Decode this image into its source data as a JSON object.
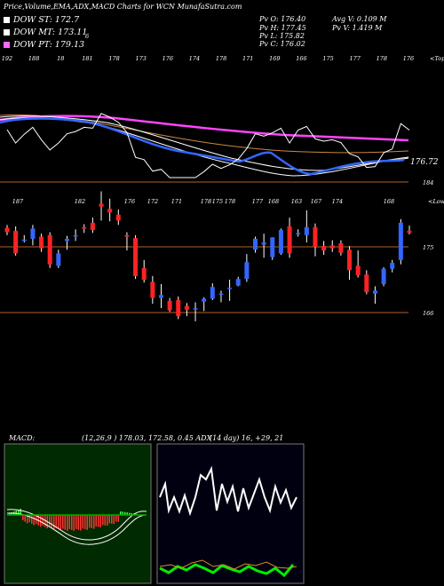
{
  "header": {
    "title": "Price,Volume,EMA,ADX,MACD Charts for WCN",
    "site": "MunafaSutra.com",
    "pv_open": "Pv   O: 176.40",
    "pv_high": "Pv   H: 177.45",
    "pv_low": "Pv   L: 175.82",
    "pv_close": "Pv   C: 176.02",
    "avg_volume": "Avg V: 0.109 M",
    "pv_volume": "Pv   V: 1.419 M",
    "stray_mark": "6"
  },
  "legend": [
    {
      "label": "DOW ST: 172.7",
      "color": "#ffffff"
    },
    {
      "label": "DOW MT: 173.11",
      "color": "#ffffff"
    },
    {
      "label": "DOW PT: 179.13",
      "color": "#ff66ff"
    }
  ],
  "colors": {
    "up": "#3366ff",
    "down": "#ff2222",
    "band": "#b0622a",
    "ema_fast": "#3366ff",
    "ema_long": "#ff44ff",
    "ema_mid": "#cc8844",
    "adx": "#00dd00",
    "adx_di": "#dd8833",
    "macd_hist": "#ff3333"
  },
  "top_panel": {
    "top_label": "<Tops",
    "top_labels": [
      "192",
      "188",
      "18",
      "181",
      "178",
      "173",
      "176",
      "174",
      "178",
      "171",
      "169",
      "166",
      "175",
      "177",
      "178",
      "176"
    ],
    "price_tag": "176.72",
    "level_label": "184"
  },
  "candle_panel": {
    "lows_label": "<Lows",
    "top_labels": [
      "187",
      "182",
      "176",
      "172",
      "171",
      "178",
      "175",
      "178",
      "177",
      "168",
      "163",
      "167",
      "174",
      "168"
    ],
    "level_high": "175",
    "level_low": "166"
  },
  "chart_data": {
    "type": "candlestick",
    "candles": [
      {
        "o": 177.6,
        "h": 178.0,
        "l": 176.6,
        "c": 177.0
      },
      {
        "o": 177.2,
        "h": 177.8,
        "l": 173.8,
        "c": 174.1
      },
      {
        "o": 176.0,
        "h": 176.6,
        "l": 175.6,
        "c": 176.0
      },
      {
        "o": 176.1,
        "h": 178.0,
        "l": 175.2,
        "c": 177.5
      },
      {
        "o": 176.4,
        "h": 176.8,
        "l": 174.3,
        "c": 174.8
      },
      {
        "o": 176.6,
        "h": 177.0,
        "l": 172.1,
        "c": 172.6
      },
      {
        "o": 172.4,
        "h": 174.6,
        "l": 172.1,
        "c": 174.1
      },
      {
        "o": 175.8,
        "h": 176.5,
        "l": 174.6,
        "c": 176.1
      },
      {
        "o": 176.6,
        "h": 177.4,
        "l": 175.8,
        "c": 176.6
      },
      {
        "o": 177.7,
        "h": 178.1,
        "l": 176.9,
        "c": 177.5
      },
      {
        "o": 178.3,
        "h": 179.0,
        "l": 176.9,
        "c": 177.3
      },
      {
        "o": 180.9,
        "h": 182.6,
        "l": 178.6,
        "c": 180.5
      },
      {
        "o": 180.2,
        "h": 181.6,
        "l": 178.5,
        "c": 179.7
      },
      {
        "o": 179.4,
        "h": 180.1,
        "l": 178.0,
        "c": 178.6
      },
      {
        "o": 176.6,
        "h": 177.0,
        "l": 174.5,
        "c": 176.4
      },
      {
        "o": 176.2,
        "h": 176.6,
        "l": 170.6,
        "c": 171.0
      },
      {
        "o": 172.1,
        "h": 173.2,
        "l": 170.1,
        "c": 170.5
      },
      {
        "o": 170.2,
        "h": 171.0,
        "l": 167.2,
        "c": 168.0
      },
      {
        "o": 168.0,
        "h": 169.9,
        "l": 166.6,
        "c": 168.4
      },
      {
        "o": 167.6,
        "h": 168.0,
        "l": 166.1,
        "c": 166.3
      },
      {
        "o": 167.7,
        "h": 168.2,
        "l": 165.1,
        "c": 165.5
      },
      {
        "o": 166.9,
        "h": 167.3,
        "l": 165.5,
        "c": 166.4
      },
      {
        "o": 166.6,
        "h": 167.4,
        "l": 164.8,
        "c": 166.6
      },
      {
        "o": 167.5,
        "h": 168.1,
        "l": 166.2,
        "c": 167.9
      },
      {
        "o": 167.9,
        "h": 170.0,
        "l": 167.7,
        "c": 169.5
      },
      {
        "o": 168.5,
        "h": 169.0,
        "l": 167.4,
        "c": 168.6
      },
      {
        "o": 169.4,
        "h": 170.5,
        "l": 167.6,
        "c": 169.4
      },
      {
        "o": 169.7,
        "h": 170.9,
        "l": 169.6,
        "c": 170.6
      },
      {
        "o": 170.6,
        "h": 174.0,
        "l": 170.2,
        "c": 172.9
      },
      {
        "o": 174.6,
        "h": 176.4,
        "l": 174.2,
        "c": 176.1
      },
      {
        "o": 175.3,
        "h": 176.8,
        "l": 173.5,
        "c": 175.6
      },
      {
        "o": 173.6,
        "h": 176.3,
        "l": 173.2,
        "c": 176.3
      },
      {
        "o": 174.1,
        "h": 177.5,
        "l": 173.9,
        "c": 177.3
      },
      {
        "o": 177.8,
        "h": 179.0,
        "l": 173.5,
        "c": 174.1
      },
      {
        "o": 176.8,
        "h": 177.4,
        "l": 176.4,
        "c": 176.9
      },
      {
        "o": 176.6,
        "h": 180.0,
        "l": 175.6,
        "c": 177.7
      },
      {
        "o": 177.7,
        "h": 178.2,
        "l": 173.7,
        "c": 175.0
      },
      {
        "o": 175.1,
        "h": 175.8,
        "l": 173.9,
        "c": 174.5
      },
      {
        "o": 175.2,
        "h": 175.9,
        "l": 174.3,
        "c": 174.8
      },
      {
        "o": 175.5,
        "h": 175.9,
        "l": 173.8,
        "c": 174.2
      },
      {
        "o": 174.6,
        "h": 175.1,
        "l": 170.5,
        "c": 171.8
      },
      {
        "o": 172.4,
        "h": 174.5,
        "l": 170.8,
        "c": 171.1
      },
      {
        "o": 171.2,
        "h": 171.8,
        "l": 168.5,
        "c": 168.8
      },
      {
        "o": 168.6,
        "h": 169.6,
        "l": 167.2,
        "c": 169.0
      },
      {
        "o": 169.9,
        "h": 172.2,
        "l": 169.6,
        "c": 172.0
      },
      {
        "o": 172.0,
        "h": 173.2,
        "l": 171.5,
        "c": 172.8
      },
      {
        "o": 173.2,
        "h": 178.8,
        "l": 172.6,
        "c": 178.3
      },
      {
        "o": 177.2,
        "h": 177.9,
        "l": 176.7,
        "c": 176.9
      }
    ]
  },
  "macd_panel": {
    "label": "MACD:",
    "params": "(12,26,9 ) 178.03,  172.58, 0.45 ADX",
    "adx_params": "(14  day) 16,  +29,  21"
  }
}
